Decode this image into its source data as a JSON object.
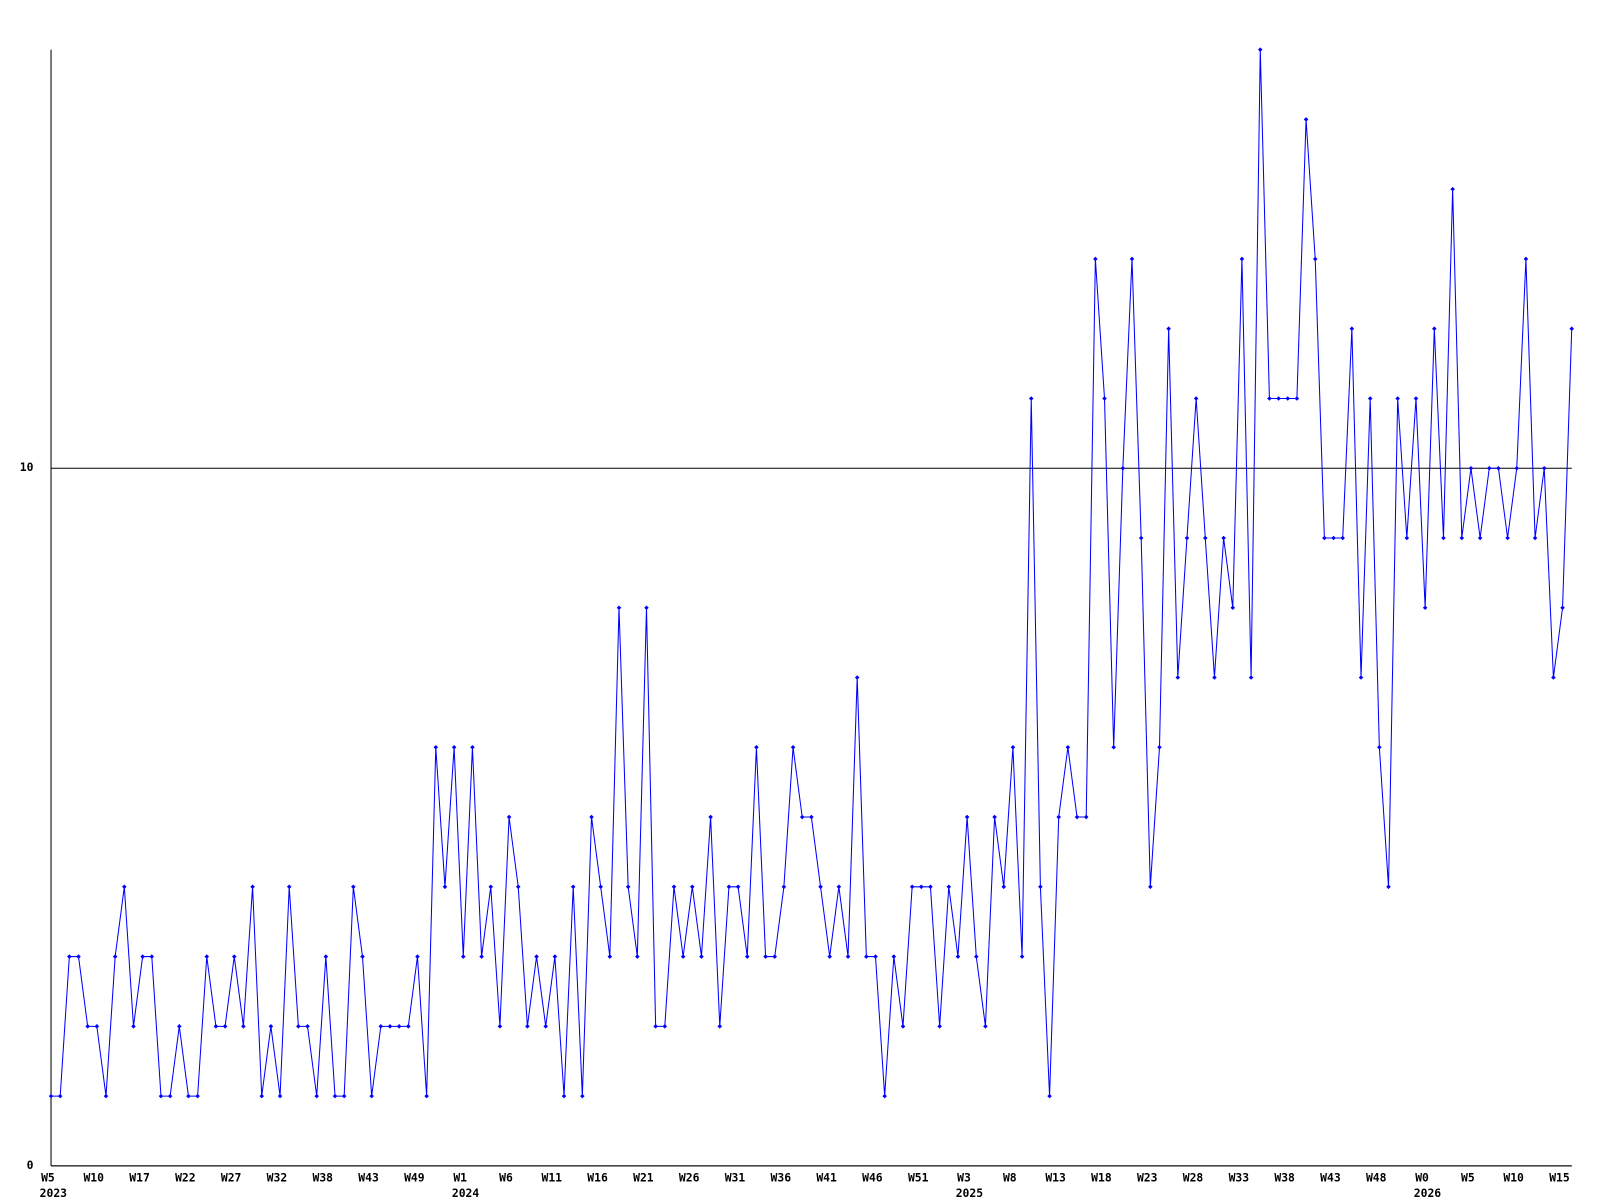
{
  "chart_data": {
    "type": "line",
    "color": "#0000ff",
    "grid": true,
    "ylim": [
      0,
      16
    ],
    "yticks": [
      0,
      10
    ],
    "categories": [
      "W5",
      null,
      null,
      null,
      null,
      "W10",
      null,
      null,
      null,
      null,
      "W17",
      null,
      null,
      null,
      null,
      "W22",
      null,
      null,
      null,
      null,
      "W27",
      null,
      null,
      null,
      null,
      "W32",
      null,
      null,
      null,
      null,
      "W38",
      null,
      null,
      null,
      null,
      "W43",
      null,
      null,
      null,
      null,
      "W49",
      null,
      null,
      null,
      null,
      "W1",
      null,
      null,
      null,
      null,
      "W6",
      null,
      null,
      null,
      null,
      "W11",
      null,
      null,
      null,
      null,
      "W16",
      null,
      null,
      null,
      null,
      "W21",
      null,
      null,
      null,
      null,
      "W26",
      null,
      null,
      null,
      null,
      "W31",
      null,
      null,
      null,
      null,
      "W36",
      null,
      null,
      null,
      null,
      "W41",
      null,
      null,
      null,
      null,
      "W46",
      null,
      null,
      null,
      null,
      "W51",
      null,
      null,
      null,
      null,
      "W3",
      null,
      null,
      null,
      null,
      "W8",
      null,
      null,
      null,
      null,
      "W13",
      null,
      null,
      null,
      null,
      "W18",
      null,
      null,
      null,
      null,
      "W23",
      null,
      null,
      null,
      null,
      "W28",
      null,
      null,
      null,
      null,
      "W33",
      null,
      null,
      null,
      null,
      "W38",
      null,
      null,
      null,
      null,
      "W43",
      null,
      null,
      null,
      null,
      "W48",
      null,
      null,
      null,
      null,
      "W0",
      null,
      null,
      null,
      null,
      "W5",
      null,
      null,
      null,
      null,
      "W10",
      null,
      null,
      null,
      null,
      "W15",
      null
    ],
    "years": [
      {
        "label": "2023",
        "category": 0
      },
      {
        "label": "2024",
        "category": 45
      },
      {
        "label": "2025",
        "category": 100
      },
      {
        "label": "2026",
        "category": 150
      }
    ],
    "values": [
      1,
      1,
      3,
      3,
      2,
      2,
      1,
      3,
      4,
      2,
      3,
      3,
      1,
      1,
      2,
      1,
      1,
      3,
      2,
      2,
      3,
      2,
      4,
      1,
      2,
      1,
      4,
      2,
      2,
      1,
      3,
      1,
      1,
      4,
      3,
      1,
      2,
      2,
      2,
      2,
      3,
      1,
      6,
      4,
      6,
      3,
      6,
      3,
      4,
      2,
      5,
      4,
      2,
      3,
      2,
      3,
      1,
      4,
      1,
      5,
      4,
      3,
      8,
      4,
      3,
      8,
      2,
      2,
      4,
      3,
      4,
      3,
      5,
      2,
      4,
      4,
      3,
      6,
      3,
      3,
      4,
      6,
      5,
      5,
      4,
      3,
      4,
      3,
      7,
      3,
      3,
      1,
      3,
      2,
      4,
      4,
      4,
      2,
      4,
      3,
      5,
      3,
      2,
      5,
      4,
      6,
      3,
      11,
      4,
      1,
      5,
      6,
      5,
      5,
      13,
      11,
      6,
      10,
      13,
      9,
      4,
      6,
      12,
      7,
      9,
      11,
      9,
      7,
      9,
      8,
      13,
      7,
      16,
      11,
      11,
      11,
      11,
      15,
      13,
      9,
      9,
      9,
      12,
      7,
      11,
      6,
      4,
      11,
      9,
      11,
      8,
      12,
      9,
      14,
      9,
      10,
      9,
      10,
      10,
      9,
      10,
      13,
      9,
      10,
      7,
      8,
      12
    ]
  }
}
